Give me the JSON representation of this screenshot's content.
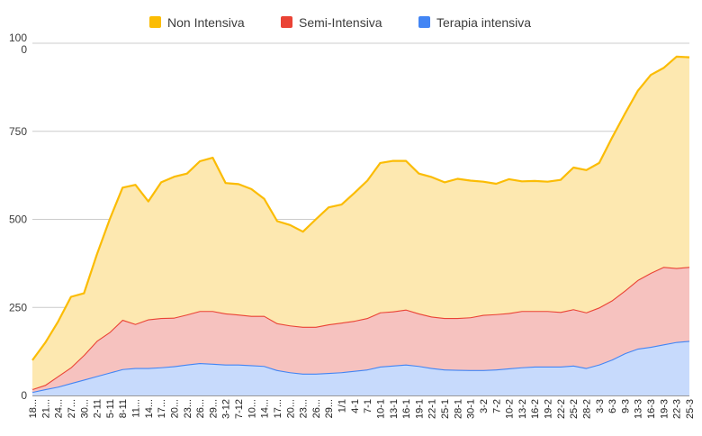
{
  "chart_data": {
    "type": "area",
    "stacked": true,
    "legend_position": "top",
    "grid": true,
    "ylim": [
      0,
      1000
    ],
    "y_ticks": [
      "0",
      "250",
      "500",
      "750",
      "100\n0"
    ],
    "x_ticks": [
      "18...",
      "21...",
      "24...",
      "27...",
      "30...",
      "2-11",
      "5-11",
      "8-11",
      "11...",
      "14...",
      "17...",
      "20...",
      "23...",
      "26...",
      "29...",
      "3-12",
      "7-12",
      "10...",
      "14...",
      "17...",
      "20...",
      "23...",
      "26...",
      "29...",
      "1/1",
      "4-1",
      "7-1",
      "10-1",
      "13-1",
      "16-1",
      "19-1",
      "22-1",
      "25-1",
      "28-1",
      "30-1",
      "3-2",
      "7-2",
      "10-2",
      "13-2",
      "16-2",
      "19-2",
      "22-2",
      "25-2",
      "28-2",
      "3-3",
      "6-3",
      "9-3",
      "13-3",
      "16-3",
      "19-3",
      "22-3",
      "25-3"
    ],
    "series": [
      {
        "name": "Terapia intensiva",
        "color": "#4285f4",
        "fill": "#c7dafc",
        "values": [
          10,
          18,
          25,
          35,
          45,
          55,
          65,
          75,
          78,
          78,
          80,
          83,
          88,
          92,
          90,
          88,
          88,
          86,
          84,
          72,
          66,
          62,
          62,
          64,
          66,
          70,
          74,
          82,
          85,
          88,
          84,
          78,
          74,
          73,
          72,
          72,
          74,
          77,
          80,
          82,
          82,
          82,
          85,
          78,
          88,
          102,
          120,
          133,
          138,
          145,
          152,
          155
        ]
      },
      {
        "name": "Semi-Intensiva",
        "color": "#ea4335",
        "fill": "#f6c2bf",
        "values": [
          8,
          12,
          30,
          45,
          70,
          100,
          115,
          140,
          125,
          138,
          140,
          138,
          142,
          148,
          150,
          145,
          142,
          140,
          142,
          133,
          133,
          133,
          133,
          138,
          141,
          142,
          146,
          154,
          154,
          156,
          149,
          146,
          146,
          147,
          150,
          157,
          157,
          157,
          160,
          158,
          158,
          155,
          160,
          158,
          162,
          168,
          178,
          195,
          210,
          220,
          210,
          210
        ]
      },
      {
        "name": "Non Intensiva",
        "color": "#fbbc04",
        "fill": "#fde8b0",
        "values": [
          82,
          120,
          155,
          200,
          175,
          245,
          320,
          375,
          395,
          335,
          385,
          400,
          400,
          425,
          435,
          370,
          370,
          360,
          332,
          290,
          285,
          270,
          305,
          332,
          335,
          363,
          390,
          424,
          427,
          422,
          397,
          396,
          385,
          395,
          388,
          378,
          370,
          380,
          368,
          369,
          367,
          375,
          402,
          404,
          410,
          462,
          502,
          537,
          562,
          565,
          600,
          595
        ]
      }
    ]
  }
}
